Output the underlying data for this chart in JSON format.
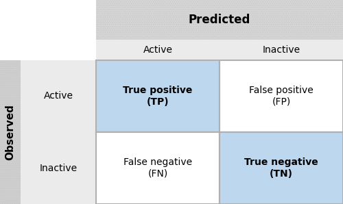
{
  "title_predicted": "Predicted",
  "title_observed": "Observed",
  "col_labels": [
    "Active",
    "Inactive"
  ],
  "row_labels": [
    "Active",
    "Inactive"
  ],
  "cells": [
    {
      "text": "True positive\n(TP)",
      "bold": true,
      "row": 0,
      "col": 0
    },
    {
      "text": "False positive\n(FP)",
      "bold": false,
      "row": 0,
      "col": 1
    },
    {
      "text": "False negative\n(FN)",
      "bold": false,
      "row": 1,
      "col": 0
    },
    {
      "text": "True negative\n(TN)",
      "bold": true,
      "row": 1,
      "col": 1
    }
  ],
  "bg_color": "#ffffff",
  "hatch_color": "#c8c8c8",
  "hatch_face": "#d8d8d8",
  "col_label_bg": "#ebebeb",
  "row_label_bg": "#ebebeb",
  "white_cell_color": "#ffffff",
  "blue_cell_color": "#bdd7ee",
  "grid_color": "#b0b0b0",
  "obs_strip_hatch_face": "#d0d0d0",
  "font_family": "DejaVu Sans"
}
